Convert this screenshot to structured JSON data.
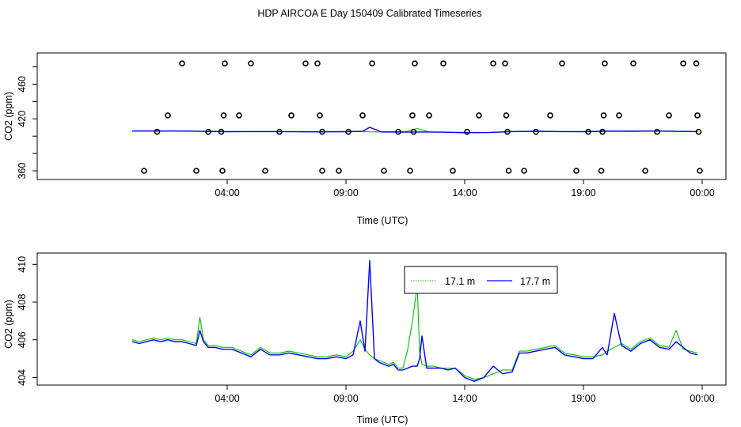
{
  "title": "HDP AIRCOA E  Day 150409  Calibrated Timeseries",
  "colors": {
    "green": "#00c000",
    "blue": "#0000ff",
    "frame": "#000000"
  },
  "chart_data": [
    {
      "type": "line",
      "panel": "top",
      "xlabel": "Time (UTC)",
      "ylabel": "CO2 (ppm)",
      "xlim": [
        -4,
        25
      ],
      "ylim": [
        350,
        496
      ],
      "x_ticks": [
        4,
        9,
        14,
        19,
        24
      ],
      "x_tick_labels": [
        "04:00",
        "09:00",
        "14:00",
        "19:00",
        "00:00"
      ],
      "y_ticks": [
        360,
        420,
        460
      ],
      "y_ticks_minor": [
        380,
        400,
        440,
        480
      ],
      "y_tick_labels": [
        "360",
        "420",
        "460"
      ],
      "series": [
        {
          "color": "green",
          "x": [
            0.0,
            1.0,
            2.0,
            3.0,
            4.0,
            5.0,
            6.0,
            7.0,
            8.0,
            9.0,
            9.7,
            10.0,
            10.5,
            11.0,
            11.5,
            12.0,
            12.5,
            13.0,
            14.0,
            15.0,
            16.0,
            17.0,
            18.0,
            19.0,
            20.0,
            21.0,
            22.0,
            23.0,
            23.8
          ],
          "y": [
            405.9,
            405.9,
            405.9,
            405.6,
            405.2,
            405.3,
            405.3,
            405.1,
            405.0,
            405.2,
            405.4,
            405.0,
            404.8,
            404.9,
            405.0,
            408.9,
            404.8,
            404.7,
            404.4,
            404.2,
            405.3,
            405.7,
            405.3,
            405.2,
            405.6,
            405.8,
            406.0,
            405.6,
            405.4
          ]
        },
        {
          "color": "blue",
          "x": [
            0.0,
            1.0,
            2.0,
            3.0,
            4.0,
            5.0,
            6.0,
            7.0,
            8.0,
            9.0,
            9.7,
            10.0,
            10.5,
            11.0,
            11.5,
            12.0,
            12.5,
            13.0,
            14.0,
            15.0,
            16.0,
            17.0,
            18.0,
            19.0,
            20.0,
            21.0,
            22.0,
            23.0,
            23.8
          ],
          "y": [
            405.9,
            405.9,
            405.9,
            405.6,
            405.2,
            405.3,
            405.3,
            405.1,
            405.0,
            405.2,
            405.6,
            410.2,
            404.8,
            404.9,
            404.7,
            404.8,
            404.8,
            404.7,
            404.0,
            404.2,
            405.3,
            405.7,
            405.3,
            405.2,
            405.8,
            405.7,
            405.9,
            405.5,
            405.3
          ]
        }
      ],
      "cal_points": [
        {
          "x": 0.5,
          "y": 360
        },
        {
          "x": 1.05,
          "y": 405
        },
        {
          "x": 1.5,
          "y": 424
        },
        {
          "x": 2.1,
          "y": 484
        },
        {
          "x": 2.7,
          "y": 360
        },
        {
          "x": 3.2,
          "y": 405
        },
        {
          "x": 3.75,
          "y": 405
        },
        {
          "x": 3.8,
          "y": 360
        },
        {
          "x": 3.85,
          "y": 424
        },
        {
          "x": 3.9,
          "y": 484
        },
        {
          "x": 4.5,
          "y": 424
        },
        {
          "x": 5.0,
          "y": 484
        },
        {
          "x": 5.6,
          "y": 360
        },
        {
          "x": 6.2,
          "y": 405
        },
        {
          "x": 6.7,
          "y": 424
        },
        {
          "x": 7.3,
          "y": 484
        },
        {
          "x": 7.8,
          "y": 484
        },
        {
          "x": 7.9,
          "y": 424
        },
        {
          "x": 8.0,
          "y": 405
        },
        {
          "x": 8.0,
          "y": 360
        },
        {
          "x": 8.7,
          "y": 360
        },
        {
          "x": 9.1,
          "y": 405
        },
        {
          "x": 9.7,
          "y": 424
        },
        {
          "x": 10.1,
          "y": 484
        },
        {
          "x": 10.6,
          "y": 360
        },
        {
          "x": 11.2,
          "y": 405
        },
        {
          "x": 11.7,
          "y": 360
        },
        {
          "x": 11.8,
          "y": 424
        },
        {
          "x": 11.85,
          "y": 405
        },
        {
          "x": 11.9,
          "y": 484
        },
        {
          "x": 12.5,
          "y": 424
        },
        {
          "x": 13.1,
          "y": 484
        },
        {
          "x": 13.5,
          "y": 360
        },
        {
          "x": 14.1,
          "y": 405
        },
        {
          "x": 14.6,
          "y": 424
        },
        {
          "x": 15.2,
          "y": 484
        },
        {
          "x": 15.7,
          "y": 484
        },
        {
          "x": 15.75,
          "y": 424
        },
        {
          "x": 15.8,
          "y": 405
        },
        {
          "x": 15.85,
          "y": 360
        },
        {
          "x": 16.5,
          "y": 360
        },
        {
          "x": 17.0,
          "y": 405
        },
        {
          "x": 17.6,
          "y": 424
        },
        {
          "x": 18.1,
          "y": 484
        },
        {
          "x": 18.7,
          "y": 360
        },
        {
          "x": 19.2,
          "y": 405
        },
        {
          "x": 19.75,
          "y": 360
        },
        {
          "x": 19.8,
          "y": 405
        },
        {
          "x": 19.85,
          "y": 424
        },
        {
          "x": 19.9,
          "y": 484
        },
        {
          "x": 20.5,
          "y": 424
        },
        {
          "x": 21.1,
          "y": 484
        },
        {
          "x": 21.6,
          "y": 360
        },
        {
          "x": 22.1,
          "y": 405
        },
        {
          "x": 22.6,
          "y": 424
        },
        {
          "x": 23.2,
          "y": 484
        },
        {
          "x": 23.75,
          "y": 484
        },
        {
          "x": 23.8,
          "y": 424
        },
        {
          "x": 23.85,
          "y": 405
        },
        {
          "x": 23.9,
          "y": 360
        }
      ]
    },
    {
      "type": "line",
      "panel": "bottom",
      "xlabel": "Time (UTC)",
      "ylabel": "CO2 (ppm)",
      "xlim": [
        -4,
        25
      ],
      "ylim": [
        403.6,
        410.6
      ],
      "x_ticks": [
        4,
        9,
        14,
        19,
        24
      ],
      "x_tick_labels": [
        "04:00",
        "09:00",
        "14:00",
        "19:00",
        "00:00"
      ],
      "y_ticks": [
        404,
        406,
        408,
        410
      ],
      "y_tick_labels": [
        "404",
        "406",
        "408",
        "410"
      ],
      "legend": {
        "placement": "top-right",
        "entries": [
          {
            "label": "17.1 m",
            "color": "green"
          },
          {
            "label": "17.7 m",
            "color": "blue"
          }
        ]
      },
      "series": [
        {
          "name": "17.1 m",
          "color": "green",
          "x": [
            0.0,
            0.3,
            0.6,
            0.9,
            1.2,
            1.5,
            1.8,
            2.1,
            2.4,
            2.7,
            2.85,
            3.0,
            3.2,
            3.5,
            3.8,
            4.2,
            4.6,
            5.0,
            5.4,
            5.8,
            6.2,
            6.6,
            7.0,
            7.4,
            7.8,
            8.2,
            8.6,
            9.0,
            9.3,
            9.6,
            9.8,
            10.0,
            10.2,
            10.4,
            10.6,
            10.8,
            11.0,
            11.2,
            11.4,
            11.6,
            11.8,
            12.0,
            12.1,
            12.2,
            12.4,
            12.7,
            13.0,
            13.3,
            13.6,
            14.0,
            14.4,
            14.8,
            15.2,
            15.6,
            16.0,
            16.3,
            16.6,
            17.0,
            17.4,
            17.8,
            18.2,
            18.6,
            19.0,
            19.4,
            19.8,
            20.0,
            20.3,
            20.6,
            21.0,
            21.4,
            21.8,
            22.2,
            22.6,
            22.9,
            23.2,
            23.5,
            23.8
          ],
          "y": [
            406.0,
            405.9,
            406.0,
            406.1,
            406.0,
            406.1,
            406.0,
            406.0,
            405.9,
            405.8,
            407.2,
            406.0,
            405.7,
            405.7,
            405.6,
            405.6,
            405.4,
            405.2,
            405.6,
            405.3,
            405.3,
            405.4,
            405.3,
            405.2,
            405.1,
            405.1,
            405.2,
            405.1,
            405.4,
            406.0,
            405.5,
            405.2,
            405.0,
            404.9,
            404.8,
            404.7,
            404.8,
            404.5,
            404.5,
            405.5,
            407.0,
            408.9,
            405.4,
            404.7,
            404.6,
            404.6,
            404.5,
            404.5,
            404.5,
            404.1,
            403.9,
            404.0,
            404.2,
            404.4,
            404.4,
            405.4,
            405.4,
            405.5,
            405.6,
            405.7,
            405.3,
            405.2,
            405.1,
            405.1,
            405.2,
            405.4,
            405.6,
            405.8,
            405.5,
            405.9,
            406.1,
            405.7,
            405.6,
            406.5,
            405.5,
            405.4,
            405.3
          ]
        },
        {
          "name": "17.7 m",
          "color": "blue",
          "x": [
            0.0,
            0.3,
            0.6,
            0.9,
            1.2,
            1.5,
            1.8,
            2.1,
            2.4,
            2.7,
            2.85,
            3.0,
            3.2,
            3.5,
            3.8,
            4.2,
            4.6,
            5.0,
            5.4,
            5.8,
            6.2,
            6.6,
            7.0,
            7.4,
            7.8,
            8.2,
            8.6,
            9.0,
            9.3,
            9.6,
            9.8,
            10.0,
            10.2,
            10.4,
            10.6,
            10.8,
            11.0,
            11.2,
            11.4,
            11.6,
            11.8,
            12.0,
            12.1,
            12.2,
            12.4,
            12.7,
            13.0,
            13.3,
            13.6,
            14.0,
            14.4,
            14.8,
            15.2,
            15.6,
            16.0,
            16.3,
            16.6,
            17.0,
            17.4,
            17.8,
            18.2,
            18.6,
            19.0,
            19.4,
            19.8,
            20.0,
            20.3,
            20.6,
            21.0,
            21.4,
            21.8,
            22.2,
            22.6,
            22.9,
            23.2,
            23.5,
            23.8
          ],
          "y": [
            405.9,
            405.8,
            405.9,
            406.0,
            405.9,
            406.0,
            405.9,
            405.9,
            405.8,
            405.7,
            406.5,
            405.9,
            405.6,
            405.6,
            405.5,
            405.5,
            405.3,
            405.1,
            405.5,
            405.2,
            405.2,
            405.3,
            405.2,
            405.1,
            405.0,
            405.0,
            405.1,
            405.0,
            405.2,
            407.0,
            405.4,
            410.2,
            405.0,
            404.8,
            404.7,
            404.6,
            404.7,
            404.4,
            404.4,
            404.5,
            404.6,
            404.6,
            405.0,
            406.2,
            404.5,
            404.5,
            404.5,
            404.4,
            404.5,
            404.0,
            403.8,
            404.0,
            404.6,
            404.2,
            404.3,
            405.3,
            405.3,
            405.4,
            405.5,
            405.6,
            405.2,
            405.1,
            405.0,
            405.0,
            405.6,
            405.2,
            407.4,
            405.7,
            405.4,
            405.8,
            406.0,
            405.6,
            405.5,
            405.9,
            405.6,
            405.3,
            405.2
          ]
        }
      ]
    }
  ]
}
